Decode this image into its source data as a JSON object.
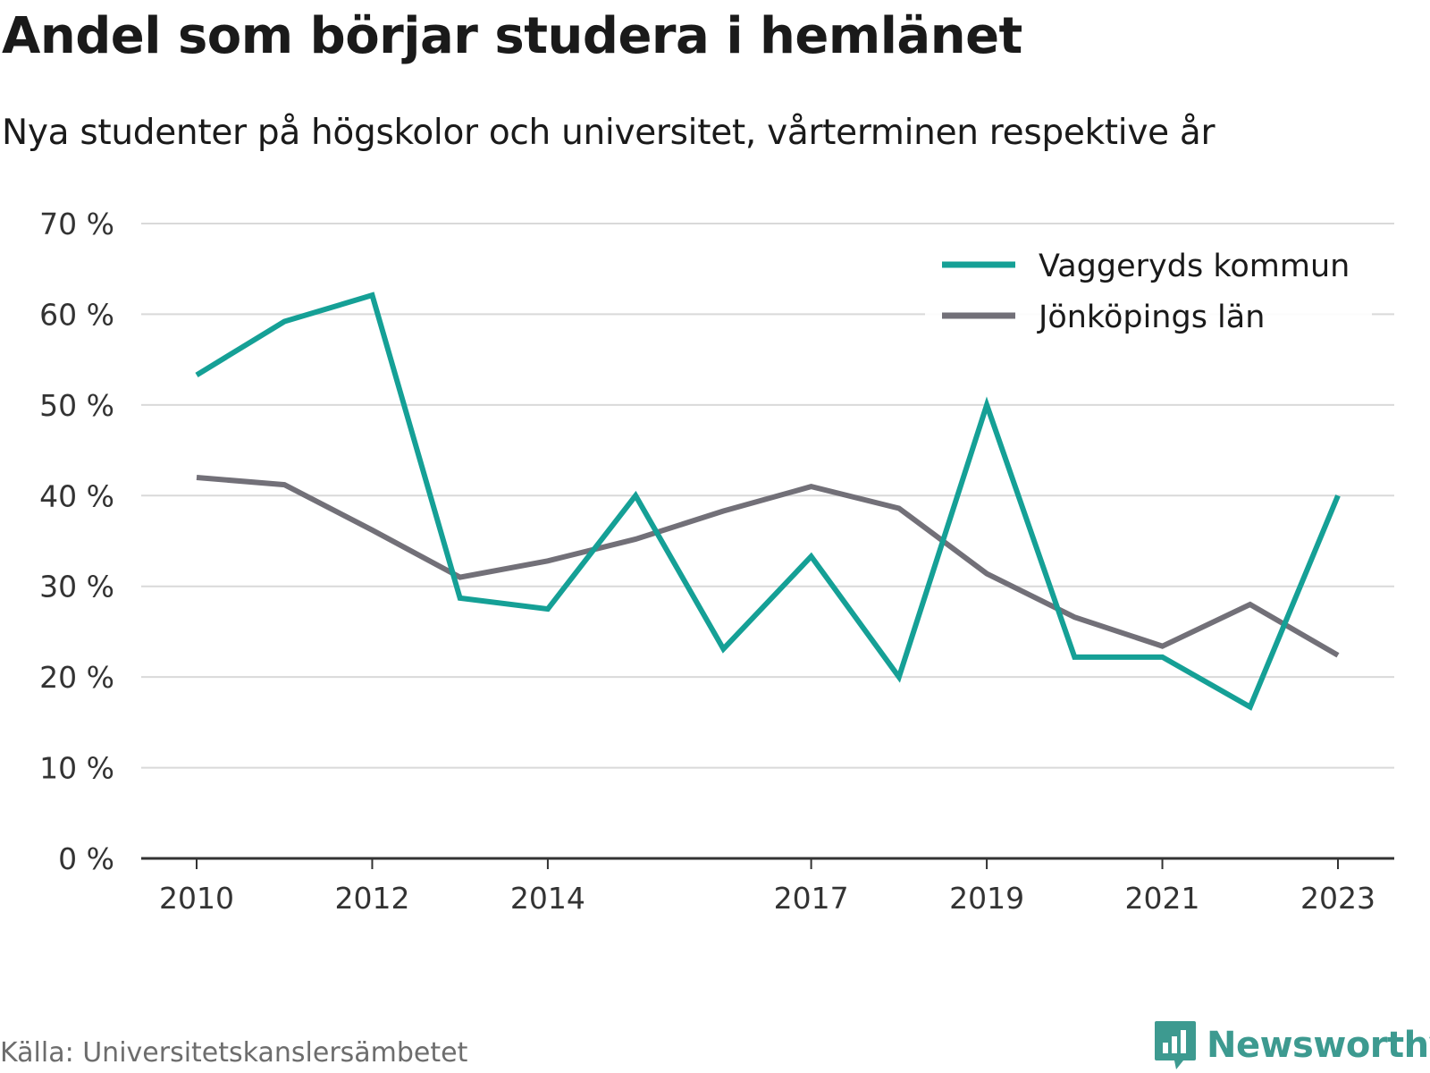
{
  "title": "Andel som börjar studera i hemlänet",
  "subtitle": "Nya studenter på högskolor och universitet, vårterminen respektive år",
  "source": "Källa: Universitetskanslersämbetet",
  "brand": "Newsworthy",
  "chart_data": {
    "type": "line",
    "x": [
      2010,
      2011,
      2012,
      2013,
      2014,
      2015,
      2016,
      2017,
      2018,
      2019,
      2020,
      2021,
      2022,
      2023
    ],
    "x_tick_labels": [
      "2010",
      "2012",
      "2014",
      "2017",
      "2019",
      "2021",
      "2023"
    ],
    "x_tick_values": [
      2010,
      2012,
      2014,
      2017,
      2019,
      2021,
      2023
    ],
    "y_tick_labels": [
      "0 %",
      "10 %",
      "20 %",
      "30 %",
      "40 %",
      "50 %",
      "60 %",
      "70 %"
    ],
    "y_tick_values": [
      0,
      10,
      20,
      30,
      40,
      50,
      60,
      70
    ],
    "ylim": [
      0,
      70
    ],
    "grid": true,
    "legend_position": "top-right",
    "series": [
      {
        "name": "Vaggeryds kommun",
        "color": "#15a096",
        "values": [
          53.3,
          59.2,
          62.1,
          28.7,
          27.5,
          40.0,
          23.1,
          33.3,
          20.0,
          50.0,
          22.2,
          22.2,
          16.7,
          40.0
        ]
      },
      {
        "name": "Jönköpings län",
        "color": "#727078",
        "values": [
          42.0,
          41.2,
          36.2,
          31.0,
          32.8,
          35.2,
          38.3,
          41.0,
          38.6,
          31.4,
          26.6,
          23.4,
          28.0,
          22.4
        ]
      }
    ]
  }
}
